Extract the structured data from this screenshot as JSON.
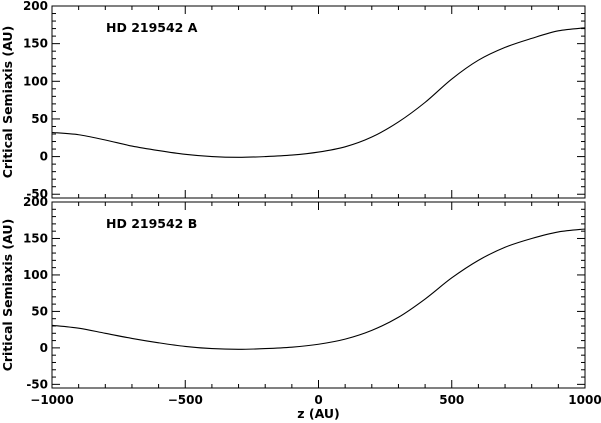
{
  "chart_data": [
    {
      "type": "line",
      "panel_label": "HD 219542 A",
      "ylabel": "Critical Semiaxis (AU)",
      "xlabel": "",
      "xlim": [
        -1000,
        1000
      ],
      "ylim": [
        -55,
        200
      ],
      "yticks": [
        -50,
        0,
        50,
        100,
        150,
        200
      ],
      "xticks": [
        -1000,
        -500,
        0,
        500,
        1000
      ],
      "show_x_tick_labels": false,
      "grid": false,
      "series": [
        {
          "x": [
            -1000,
            -900,
            -800,
            -700,
            -600,
            -500,
            -400,
            -300,
            -200,
            -100,
            0,
            100,
            200,
            300,
            400,
            500,
            600,
            700,
            800,
            900,
            1000
          ],
          "y": [
            32,
            29,
            22,
            14,
            8,
            3,
            0,
            -1,
            0,
            2,
            6,
            13,
            26,
            46,
            72,
            103,
            128,
            145,
            157,
            167,
            171
          ]
        }
      ]
    },
    {
      "type": "line",
      "panel_label": "HD 219542 B",
      "ylabel": "Critical Semiaxis (AU)",
      "xlabel": "z (AU)",
      "xlim": [
        -1000,
        1000
      ],
      "ylim": [
        -55,
        200
      ],
      "yticks": [
        -50,
        0,
        50,
        100,
        150,
        200
      ],
      "xticks": [
        -1000,
        -500,
        0,
        500,
        1000
      ],
      "show_x_tick_labels": true,
      "grid": false,
      "series": [
        {
          "x": [
            -1000,
            -900,
            -800,
            -700,
            -600,
            -500,
            -400,
            -300,
            -200,
            -100,
            0,
            100,
            200,
            300,
            400,
            500,
            600,
            700,
            800,
            900,
            1000
          ],
          "y": [
            31,
            27,
            20,
            13,
            7,
            2,
            -1,
            -2,
            -1,
            1,
            5,
            12,
            24,
            42,
            67,
            96,
            120,
            138,
            150,
            159,
            163
          ]
        }
      ]
    }
  ]
}
